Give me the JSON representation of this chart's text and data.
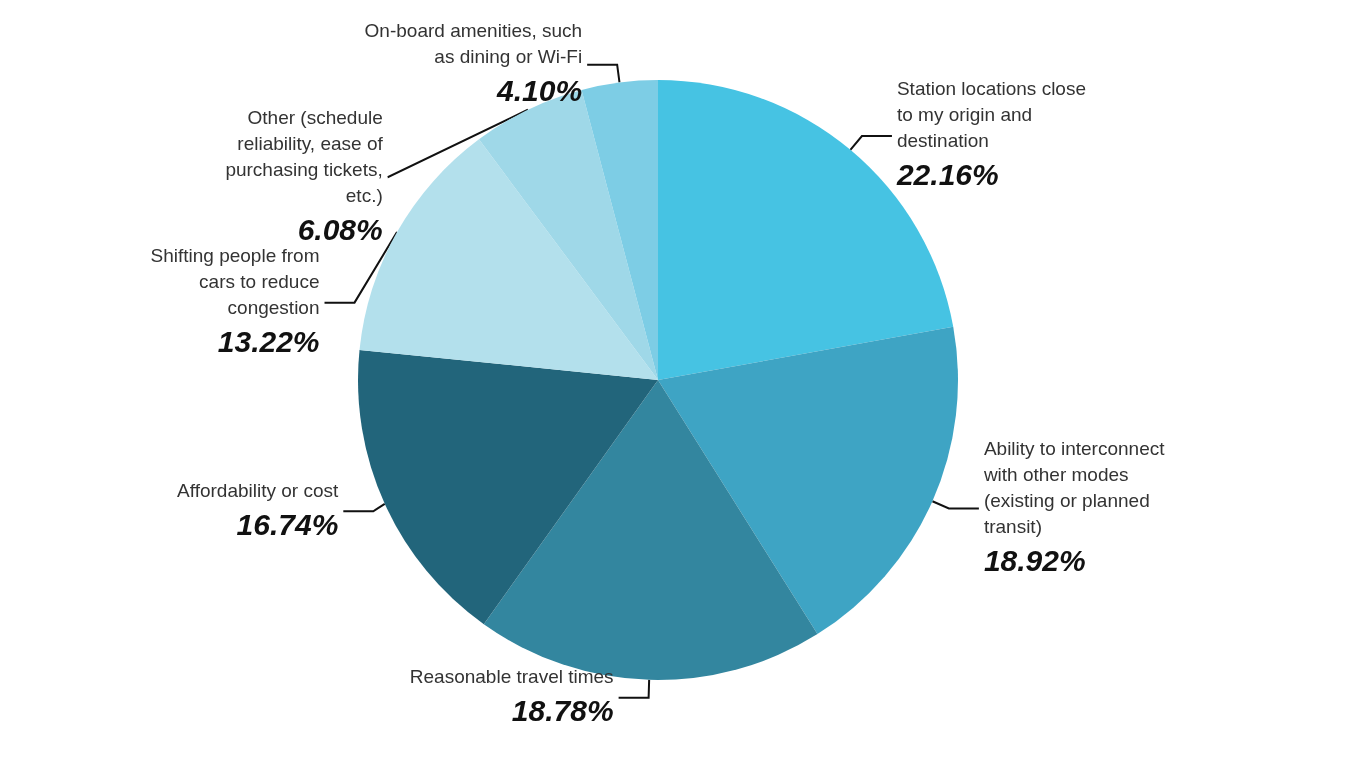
{
  "chart_data": {
    "type": "pie",
    "categories": [
      "Station locations close to my origin and destination",
      "Ability to interconnect with other modes (existing or planned transit)",
      "Reasonable travel times",
      "Affordability or cost",
      "Shifting people from cars to reduce congestion",
      "Other (schedule reliability, ease of purchasing tickets, etc.)",
      "On-board amenities, such as dining or Wi-Fi"
    ],
    "values": [
      22.16,
      18.92,
      18.78,
      16.74,
      13.22,
      6.08,
      4.1
    ],
    "value_labels": [
      "22.16%",
      "18.92%",
      "18.78%",
      "16.74%",
      "13.22%",
      "6.08%",
      "4.10%"
    ],
    "colors": [
      "#46c3e3",
      "#3ea4c4",
      "#33869f",
      "#22657b",
      "#b3e0ec",
      "#9fd8e8",
      "#7dcde5"
    ],
    "legend": false
  }
}
